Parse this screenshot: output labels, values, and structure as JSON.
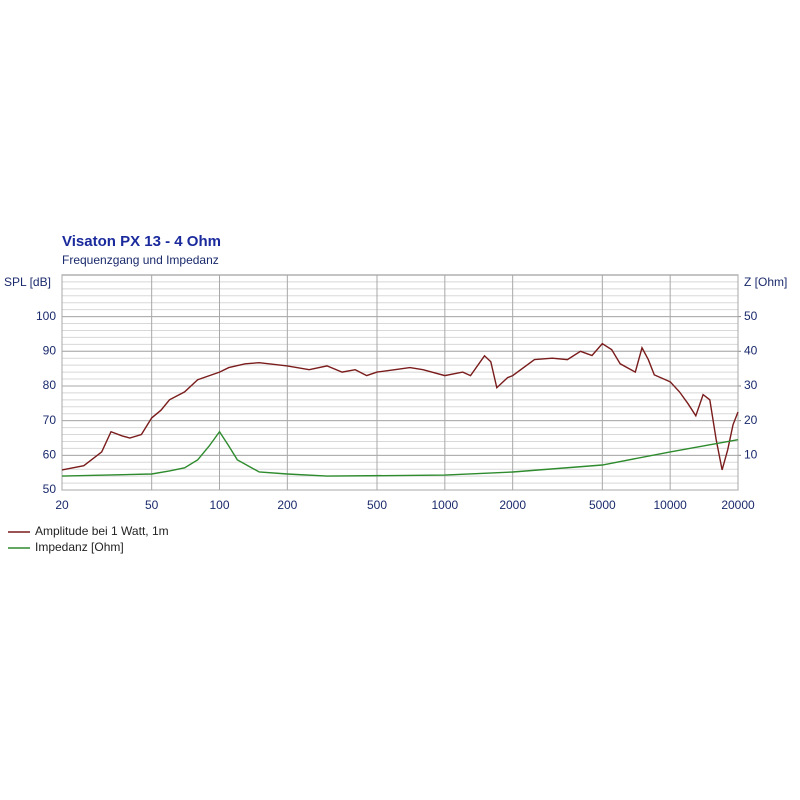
{
  "chart_data": {
    "type": "line",
    "title": "Visaton PX 13 - 4 Ohm",
    "subtitle": "Frequenzgang und Impedanz",
    "y_label": "SPL [dB]",
    "y2_label": "Z [Ohm]",
    "x_scale": "log",
    "xlim": [
      20,
      20000
    ],
    "xticks": [
      20,
      50,
      100,
      200,
      500,
      1000,
      2000,
      5000,
      10000,
      20000
    ],
    "ylim": [
      50,
      112
    ],
    "yticks": [
      50,
      60,
      70,
      80,
      90,
      100
    ],
    "y2lim": [
      0,
      62
    ],
    "y2ticks": [
      10,
      20,
      30,
      40,
      50
    ],
    "grid": true,
    "legend": "bottom-left",
    "series": [
      {
        "name": "Amplitude bei 1 Watt, 1m",
        "color": "#7a1c1c",
        "x": [
          20,
          25,
          30,
          33,
          37,
          40,
          45,
          50,
          55,
          60,
          70,
          80,
          100,
          110,
          130,
          150,
          200,
          250,
          300,
          350,
          400,
          450,
          500,
          600,
          700,
          800,
          1000,
          1200,
          1300,
          1500,
          1600,
          1700,
          1900,
          2000,
          2500,
          3000,
          3500,
          4000,
          4500,
          5000,
          5500,
          6000,
          7000,
          7500,
          8000,
          8500,
          10000,
          11000,
          12000,
          13000,
          14000,
          15000,
          16000,
          17000,
          18000,
          19000,
          20000
        ],
        "values": [
          55.8,
          57,
          61,
          66.8,
          65.6,
          65,
          66,
          70.8,
          73,
          76,
          78.3,
          81.8,
          84,
          85.3,
          86.4,
          86.7,
          85.8,
          84.7,
          85.8,
          84,
          84.7,
          83,
          84,
          84.7,
          85.3,
          84.7,
          83,
          84,
          83,
          88.7,
          87,
          79.5,
          82.4,
          83,
          87.6,
          88,
          87.6,
          90,
          88.8,
          92.2,
          90.5,
          86.4,
          84,
          91,
          87.6,
          83.2,
          81.2,
          78.3,
          74.9,
          71.4,
          77.5,
          76,
          64.5,
          55.8,
          61.6,
          68.8,
          72.5
        ]
      },
      {
        "name": "Impedanz [Ohm]",
        "color": "#2e8b2e",
        "axis": "y2",
        "x": [
          20,
          50,
          60,
          70,
          80,
          90,
          100,
          110,
          120,
          150,
          200,
          300,
          1000,
          2000,
          5000,
          10000,
          20000
        ],
        "values": [
          4.0,
          4.6,
          5.5,
          6.4,
          8.7,
          12.7,
          16.8,
          12.7,
          8.7,
          5.2,
          4.6,
          4.0,
          4.3,
          5.2,
          7.2,
          11,
          14.5
        ]
      }
    ]
  }
}
